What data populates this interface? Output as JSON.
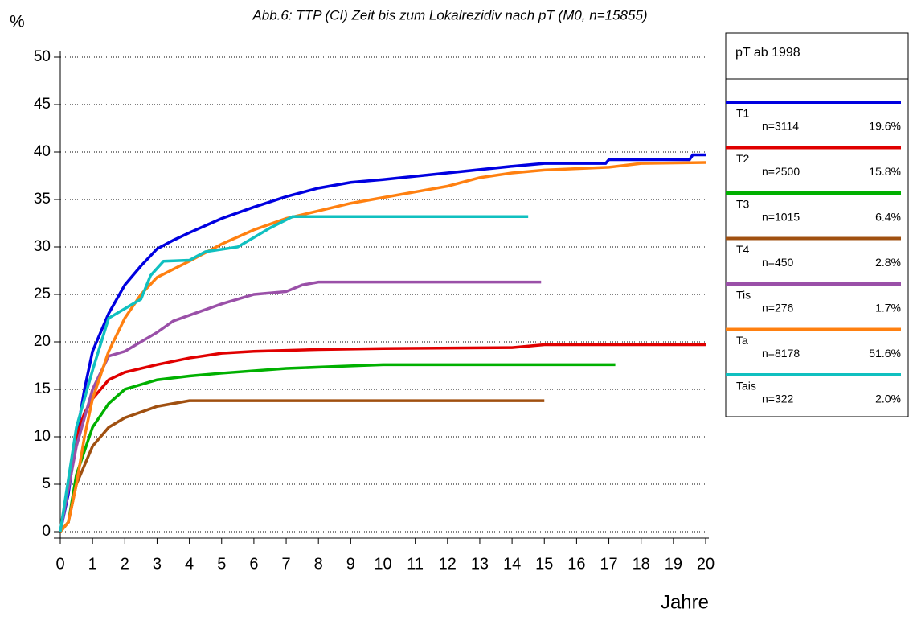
{
  "chart_data": {
    "type": "line",
    "title": "Abb.6: TTP (CI) Zeit bis zum Lokalrezidiv nach pT (M0, n=15855)",
    "y_label": "%",
    "x_label": "Jahre",
    "xlim": [
      0,
      20
    ],
    "ylim": [
      0,
      50
    ],
    "xticks": [
      0,
      1,
      2,
      3,
      4,
      5,
      6,
      7,
      8,
      9,
      10,
      11,
      12,
      13,
      14,
      15,
      16,
      17,
      18,
      19,
      20
    ],
    "yticks": [
      0,
      5,
      10,
      15,
      20,
      25,
      30,
      35,
      40,
      45,
      50
    ],
    "grid": true,
    "legend": {
      "title": "pT ab 1998",
      "position": "right"
    },
    "series": [
      {
        "name": "T1",
        "n_label": "n=3114",
        "share_label": "19.6%",
        "color": "#0000e0",
        "x": [
          0,
          0.25,
          0.5,
          0.75,
          1,
          1.5,
          2,
          2.5,
          3,
          3.5,
          4,
          5,
          6,
          7,
          8,
          9,
          10,
          12,
          14,
          15,
          16.9,
          17,
          19.5,
          19.6,
          20
        ],
        "values": [
          0,
          4,
          10,
          15,
          19,
          23,
          26,
          28,
          29.8,
          30.7,
          31.5,
          33,
          34.2,
          35.3,
          36.2,
          36.8,
          37.1,
          37.8,
          38.5,
          38.8,
          38.8,
          39.2,
          39.2,
          39.7,
          39.7
        ]
      },
      {
        "name": "T2",
        "n_label": "n=2500",
        "share_label": "15.8%",
        "color": "#e00000",
        "x": [
          0,
          0.25,
          0.5,
          0.75,
          1,
          1.5,
          2,
          3,
          4,
          5,
          6,
          8,
          10,
          14,
          15,
          20
        ],
        "values": [
          0,
          5,
          10,
          12.5,
          14,
          16,
          16.8,
          17.6,
          18.3,
          18.8,
          19,
          19.2,
          19.3,
          19.4,
          19.7,
          19.7
        ]
      },
      {
        "name": "T3",
        "n_label": "n=1015",
        "share_label": "6.4%",
        "color": "#00b000",
        "x": [
          0,
          0.25,
          0.5,
          1,
          1.5,
          2,
          3,
          4,
          5,
          7,
          8.5,
          10,
          17.2
        ],
        "values": [
          0,
          1,
          6,
          11,
          13.5,
          15,
          16,
          16.4,
          16.7,
          17.2,
          17.4,
          17.6,
          17.6
        ]
      },
      {
        "name": "T4",
        "n_label": "n=450",
        "share_label": "2.8%",
        "color": "#a05010",
        "x": [
          0,
          0.25,
          0.5,
          1,
          1.5,
          2,
          2.5,
          3,
          4,
          15
        ],
        "values": [
          0,
          1,
          5,
          9,
          11,
          12,
          12.6,
          13.2,
          13.8,
          13.8
        ]
      },
      {
        "name": "Tis",
        "n_label": "n=276",
        "share_label": "1.7%",
        "color": "#9a50a8",
        "x": [
          0,
          0.5,
          1,
          1.5,
          2,
          2.5,
          3,
          3.5,
          4,
          5,
          6,
          7,
          7.5,
          8,
          14.9
        ],
        "values": [
          0,
          9,
          15,
          18.5,
          19,
          20,
          21,
          22.2,
          22.8,
          24,
          25,
          25.3,
          26,
          26.3,
          26.3
        ]
      },
      {
        "name": "Ta",
        "n_label": "n=8178",
        "share_label": "51.6%",
        "color": "#ff8010",
        "x": [
          0,
          0.25,
          0.5,
          0.75,
          1,
          1.5,
          2,
          2.5,
          3,
          4,
          5,
          6,
          7,
          8,
          9,
          10,
          11,
          12,
          13,
          14,
          15,
          17,
          18,
          20
        ],
        "values": [
          0,
          1,
          5,
          10,
          14,
          19,
          22.5,
          25,
          26.8,
          28.5,
          30.3,
          31.8,
          33,
          33.8,
          34.6,
          35.2,
          35.8,
          36.4,
          37.3,
          37.8,
          38.1,
          38.4,
          38.8,
          38.9
        ]
      },
      {
        "name": "Tais",
        "n_label": "n=322",
        "share_label": "2.0%",
        "color": "#10c0c0",
        "x": [
          0,
          0.5,
          1,
          1.5,
          2,
          2.5,
          2.8,
          3.2,
          4,
          4.5,
          5.5,
          6,
          6.5,
          7.2,
          14.5
        ],
        "values": [
          0,
          11,
          17,
          22.5,
          23.5,
          24.5,
          27,
          28.5,
          28.6,
          29.5,
          30,
          31,
          32,
          33.2,
          33.2
        ]
      }
    ]
  }
}
